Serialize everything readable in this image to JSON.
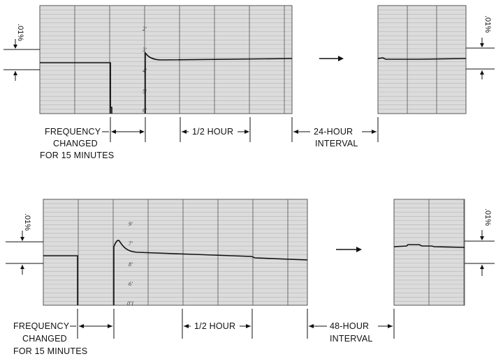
{
  "top": {
    "label_frequency": [
      "FREQUENCY",
      "CHANGED",
      "FOR 15 MINUTES"
    ],
    "label_half_hour": "1/2 HOUR",
    "label_interval": [
      "24-HOUR",
      "INTERVAL"
    ],
    "scale_left": ".01%",
    "scale_right": ".01%",
    "tick_labels": [
      "2'",
      "3'",
      "4'",
      "5'",
      "6'"
    ]
  },
  "bottom": {
    "label_frequency": [
      "FREQUENCY",
      "CHANGED",
      "FOR 15 MINUTES"
    ],
    "label_half_hour": "1/2 HOUR",
    "label_interval": [
      "48-HOUR",
      "INTERVAL"
    ],
    "scale_left": ".01%",
    "scale_right": ".01%",
    "tick_labels": [
      "9'",
      "7'",
      "8'",
      "6'",
      "0'1"
    ]
  },
  "colors": {
    "paper": "#dcdcdc",
    "grid_minor": "#b4b4b4",
    "grid_major": "#6e6e6e",
    "trace": "#111111"
  }
}
